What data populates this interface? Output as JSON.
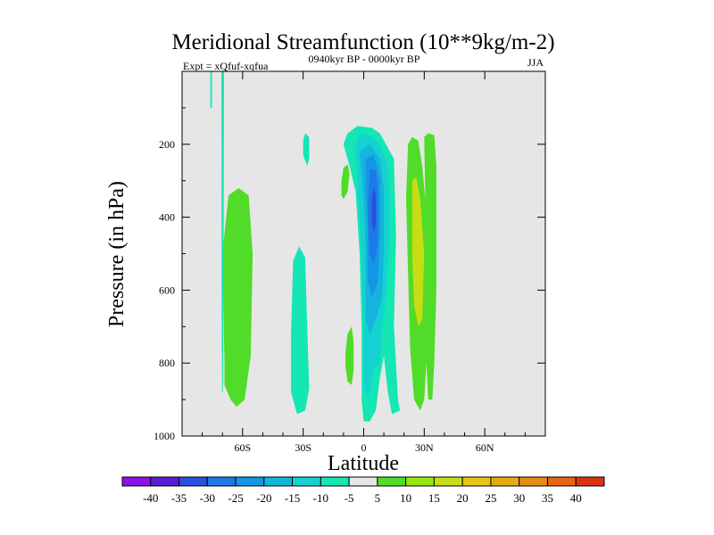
{
  "chart_data": {
    "type": "contour",
    "title": "Meridional Streamfunction (10**9kg/m-2)",
    "subtitle_left": "Expt = xQfuf-xqfua",
    "subtitle_center": "0940kyr BP - 0000kyr BP",
    "subtitle_right": "JJA",
    "xlabel": "Latitude",
    "ylabel": "Pressure (in hPa)",
    "xlim": [
      -90,
      90
    ],
    "ylim": [
      1000,
      0
    ],
    "x_ticks": [
      {
        "value": -60,
        "label": "60S"
      },
      {
        "value": -30,
        "label": "30S"
      },
      {
        "value": 0,
        "label": "0"
      },
      {
        "value": 30,
        "label": "30N"
      },
      {
        "value": 60,
        "label": "60N"
      }
    ],
    "y_ticks": [
      {
        "value": 200,
        "label": "200"
      },
      {
        "value": 400,
        "label": "400"
      },
      {
        "value": 600,
        "label": "600"
      },
      {
        "value": 800,
        "label": "800"
      },
      {
        "value": 1000,
        "label": "1000"
      }
    ],
    "colorbar": {
      "levels": [
        -40,
        -35,
        -30,
        -25,
        -20,
        -15,
        -10,
        -5,
        5,
        10,
        15,
        20,
        25,
        30,
        35,
        40
      ],
      "labels": [
        "-40",
        "-35",
        "-30",
        "-25",
        "-20",
        "-15",
        "-10",
        "-5",
        "5",
        "10",
        "15",
        "20",
        "25",
        "30",
        "35",
        "40"
      ],
      "colors": [
        "#8c14e6",
        "#5a1ed2",
        "#2850dc",
        "#1e78e6",
        "#1496e6",
        "#14b4dc",
        "#14d2d2",
        "#14e6b4",
        "#e6e6e6",
        "#50dc28",
        "#96e614",
        "#c8dc14",
        "#e6c814",
        "#e6aa14",
        "#e68c14",
        "#e66414",
        "#dc3214"
      ]
    },
    "regions": [
      {
        "name": "60S-column-green",
        "class": 5,
        "points": [
          [
            -69,
            800
          ],
          [
            -70,
            500
          ],
          [
            -67,
            340
          ],
          [
            -62,
            320
          ],
          [
            -57,
            340
          ],
          [
            -55,
            500
          ],
          [
            -56,
            780
          ],
          [
            -59,
            900
          ],
          [
            -63,
            920
          ],
          [
            -66,
            900
          ],
          [
            -69,
            860
          ]
        ]
      },
      {
        "name": "30S-column-teal",
        "class": -5,
        "points": [
          [
            -36,
            720
          ],
          [
            -35,
            520
          ],
          [
            -32,
            480
          ],
          [
            -29,
            510
          ],
          [
            -28,
            700
          ],
          [
            -27,
            870
          ],
          [
            -29,
            930
          ],
          [
            -33,
            940
          ],
          [
            -36,
            880
          ]
        ]
      },
      {
        "name": "20S-upper-teal",
        "class": -5,
        "points": [
          [
            -30,
            190
          ],
          [
            -29,
            170
          ],
          [
            -27,
            180
          ],
          [
            -27,
            240
          ],
          [
            -28,
            260
          ],
          [
            -30,
            230
          ]
        ]
      },
      {
        "name": "10S-upper-green",
        "class": 5,
        "points": [
          [
            -11,
            300
          ],
          [
            -10,
            265
          ],
          [
            -8,
            255
          ],
          [
            -7,
            280
          ],
          [
            -8,
            330
          ],
          [
            -10,
            350
          ],
          [
            -11,
            340
          ]
        ]
      },
      {
        "name": "10S-lower-green",
        "class": 5,
        "points": [
          [
            -9,
            770
          ],
          [
            -8,
            720
          ],
          [
            -6,
            700
          ],
          [
            -5,
            740
          ],
          [
            -5,
            820
          ],
          [
            -6,
            860
          ],
          [
            -8,
            850
          ],
          [
            -9,
            810
          ]
        ]
      },
      {
        "name": "equator-negative-outer",
        "class": -5,
        "points": [
          [
            -10,
            200
          ],
          [
            -8,
            170
          ],
          [
            -3,
            150
          ],
          [
            4,
            155
          ],
          [
            8,
            170
          ],
          [
            11,
            200
          ],
          [
            15,
            240
          ],
          [
            16,
            450
          ],
          [
            15,
            700
          ],
          [
            17,
            900
          ],
          [
            18,
            930
          ],
          [
            14,
            940
          ],
          [
            12,
            880
          ],
          [
            10,
            780
          ],
          [
            8,
            840
          ],
          [
            6,
            930
          ],
          [
            3,
            960
          ],
          [
            0,
            960
          ],
          [
            -1,
            900
          ],
          [
            -1,
            700
          ],
          [
            -2,
            500
          ],
          [
            -4,
            330
          ],
          [
            -7,
            260
          ]
        ]
      },
      {
        "name": "equator-negative-10",
        "class": -10,
        "points": [
          [
            -4,
            200
          ],
          [
            -2,
            170
          ],
          [
            3,
            175
          ],
          [
            8,
            200
          ],
          [
            12,
            260
          ],
          [
            13,
            420
          ],
          [
            11,
            620
          ],
          [
            9,
            700
          ],
          [
            8,
            800
          ],
          [
            5,
            820
          ],
          [
            2,
            900
          ],
          [
            0,
            860
          ],
          [
            0,
            700
          ],
          [
            -1,
            500
          ],
          [
            -3,
            330
          ]
        ]
      },
      {
        "name": "equator-negative-15",
        "class": -15,
        "points": [
          [
            -2,
            220
          ],
          [
            3,
            200
          ],
          [
            8,
            240
          ],
          [
            10,
            320
          ],
          [
            10,
            500
          ],
          [
            9,
            620
          ],
          [
            6,
            680
          ],
          [
            3,
            720
          ],
          [
            1,
            680
          ],
          [
            1,
            500
          ],
          [
            0,
            350
          ]
        ]
      },
      {
        "name": "equator-negative-20",
        "class": -20,
        "points": [
          [
            1,
            240
          ],
          [
            5,
            230
          ],
          [
            8,
            290
          ],
          [
            8,
            450
          ],
          [
            7,
            580
          ],
          [
            4,
            620
          ],
          [
            2,
            570
          ],
          [
            2,
            420
          ],
          [
            1,
            320
          ]
        ]
      },
      {
        "name": "equator-negative-25",
        "class": -25,
        "points": [
          [
            3,
            270
          ],
          [
            6,
            270
          ],
          [
            7,
            340
          ],
          [
            7,
            470
          ],
          [
            5,
            530
          ],
          [
            3,
            500
          ],
          [
            2,
            380
          ]
        ]
      },
      {
        "name": "equator-negative-30",
        "class": -30,
        "points": [
          [
            5,
            320
          ],
          [
            6,
            340
          ],
          [
            6,
            420
          ],
          [
            5,
            440
          ],
          [
            4,
            410
          ],
          [
            4,
            350
          ]
        ]
      },
      {
        "name": "25N-column-green",
        "class": 5,
        "points": [
          [
            22,
            200
          ],
          [
            24,
            180
          ],
          [
            27,
            190
          ],
          [
            29,
            260
          ],
          [
            31,
            380
          ],
          [
            32,
            600
          ],
          [
            31,
            800
          ],
          [
            30,
            900
          ],
          [
            28,
            930
          ],
          [
            25,
            900
          ],
          [
            23,
            760
          ],
          [
            22,
            550
          ],
          [
            21,
            350
          ]
        ]
      },
      {
        "name": "25N-core-15",
        "class": 15,
        "points": [
          [
            24,
            300
          ],
          [
            26,
            290
          ],
          [
            28,
            350
          ],
          [
            30,
            500
          ],
          [
            29,
            680
          ],
          [
            27,
            700
          ],
          [
            25,
            640
          ],
          [
            24,
            500
          ]
        ]
      },
      {
        "name": "35N-column-green",
        "class": 5,
        "points": [
          [
            30,
            180
          ],
          [
            32,
            170
          ],
          [
            35,
            175
          ],
          [
            36,
            260
          ],
          [
            36,
            600
          ],
          [
            35,
            800
          ],
          [
            34,
            900
          ],
          [
            32,
            900
          ],
          [
            31,
            800
          ],
          [
            31,
            500
          ]
        ]
      },
      {
        "name": "75S-spike-teal",
        "class": -5,
        "points": [
          [
            -76,
            0
          ],
          [
            -75.2,
            0
          ],
          [
            -75.2,
            100
          ],
          [
            -76,
            100
          ]
        ]
      },
      {
        "name": "70S-spike-teal",
        "class": -5,
        "points": [
          [
            -70.5,
            0
          ],
          [
            -69.2,
            0
          ],
          [
            -69.4,
            400
          ],
          [
            -69.6,
            700
          ],
          [
            -69.8,
            880
          ],
          [
            -70.2,
            880
          ],
          [
            -70.4,
            600
          ]
        ]
      }
    ]
  }
}
